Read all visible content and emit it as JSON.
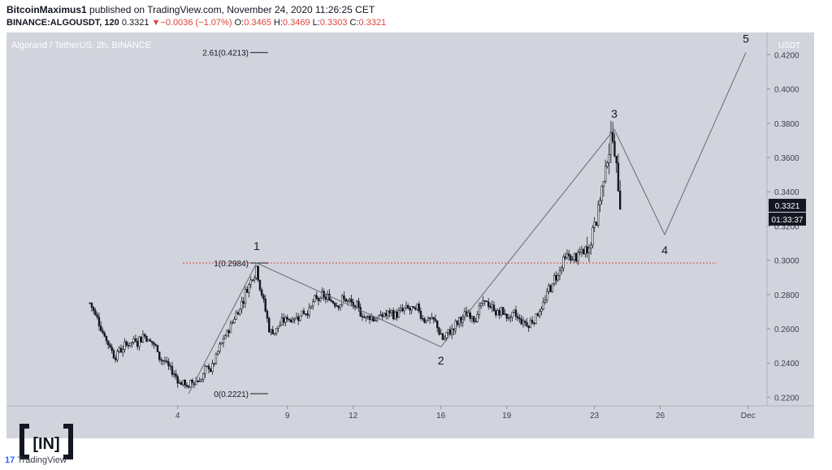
{
  "header": {
    "publisher": "BitcoinMaximus1",
    "published_text": "published on TradingView.com, November 24, 2020 11:26:25 CET",
    "symbol": "BINANCE:ALGOUSDT, 120",
    "last": "0.3321",
    "change_arrow": "▼",
    "change": "−0.0036 (−1.07%)",
    "o_label": "O:",
    "o_value": "0.3465",
    "h_label": "H:",
    "h_value": "0.3469",
    "l_label": "L:",
    "l_value": "0.3303",
    "c_label": "C:",
    "c_value": "0.3321"
  },
  "colors": {
    "plot_bg": "#d1d4dc",
    "candle": "#131722",
    "wave_line": "#6f737d",
    "level_line": "#e0433a",
    "price_tag_bg": "#131722",
    "accent_red": "#e0433a"
  },
  "chart_data": {
    "type": "candlestick",
    "title": "Algorand / TetherUS, 2h, BINANCE",
    "y_axis_label": "USDT",
    "x_ticks": [
      "4",
      "9",
      "12",
      "16",
      "19",
      "23",
      "26",
      "Dec"
    ],
    "y_ticks": [
      "0.4200",
      "0.4000",
      "0.3800",
      "0.3600",
      "0.3400",
      "0.3200",
      "0.3000",
      "0.2800",
      "0.2600",
      "0.2400",
      "0.2200"
    ],
    "ylim": [
      0.215,
      0.433
    ],
    "current_price": "0.3321",
    "countdown": "01:33:37",
    "anchors": [
      {
        "date": 0.0,
        "price": 0.275
      },
      {
        "date": 1.1,
        "price": 0.246
      },
      {
        "date": 2.5,
        "price": 0.258
      },
      {
        "date": 3.9,
        "price": 0.232
      },
      {
        "date": 4.5,
        "price": 0.226
      },
      {
        "date": 5.6,
        "price": 0.238
      },
      {
        "date": 6.9,
        "price": 0.276
      },
      {
        "date": 7.6,
        "price": 0.298
      },
      {
        "date": 8.2,
        "price": 0.258
      },
      {
        "date": 9.3,
        "price": 0.268
      },
      {
        "date": 10.4,
        "price": 0.276
      },
      {
        "date": 11.6,
        "price": 0.278
      },
      {
        "date": 12.3,
        "price": 0.268
      },
      {
        "date": 13.2,
        "price": 0.267
      },
      {
        "date": 14.4,
        "price": 0.27
      },
      {
        "date": 15.6,
        "price": 0.266
      },
      {
        "date": 16.1,
        "price": 0.254
      },
      {
        "date": 17.2,
        "price": 0.268
      },
      {
        "date": 18.1,
        "price": 0.274
      },
      {
        "date": 19.2,
        "price": 0.266
      },
      {
        "date": 20.0,
        "price": 0.262
      },
      {
        "date": 20.7,
        "price": 0.276
      },
      {
        "date": 21.6,
        "price": 0.299
      },
      {
        "date": 22.3,
        "price": 0.302
      },
      {
        "date": 22.7,
        "price": 0.306
      },
      {
        "date": 23.3,
        "price": 0.34
      },
      {
        "date": 23.8,
        "price": 0.375
      },
      {
        "date": 24.2,
        "price": 0.332
      }
    ],
    "wave_points": [
      {
        "label": "",
        "date": 4.5,
        "price": 0.2221
      },
      {
        "label": "1",
        "date": 7.6,
        "price": 0.2984
      },
      {
        "label": "2",
        "date": 16.0,
        "price": 0.2495
      },
      {
        "label": "3",
        "date": 23.9,
        "price": 0.3765
      },
      {
        "label": "4",
        "date": 26.2,
        "price": 0.315
      },
      {
        "label": "5",
        "date": 29.9,
        "price": 0.4213
      }
    ],
    "fib_levels": [
      {
        "label": "2.61(0.4213)",
        "value": 0.4213
      },
      {
        "label": "1(0.2984)",
        "value": 0.2984
      },
      {
        "label": "0(0.2221)",
        "value": 0.2221
      }
    ],
    "resistance_level": 0.2984
  },
  "branding": {
    "watermark": "[IN]",
    "tv_mark": "17",
    "tv_text": "TradingView"
  }
}
